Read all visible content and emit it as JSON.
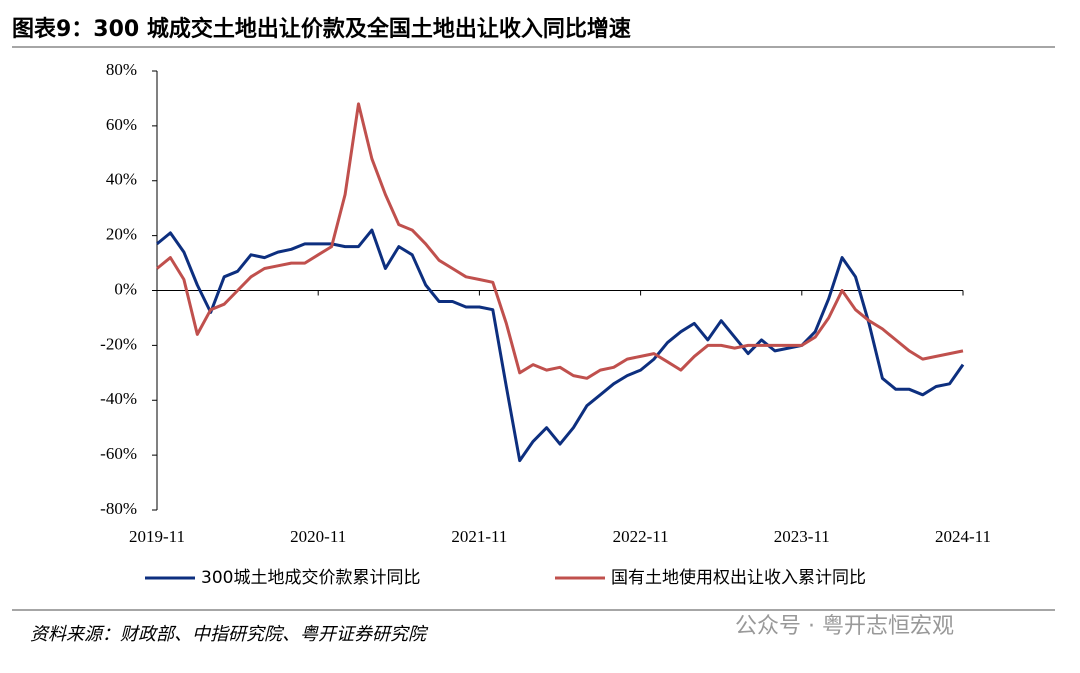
{
  "chart_data": {
    "type": "line",
    "title": "图表9：300 城成交土地出让价款及全国土地出让收入同比增速",
    "source": "资料来源：财政部、中指研究院、粤开证券研究院",
    "watermark": "公众号 · 粤开志恒宏观",
    "categories": [
      "2019-11",
      null,
      null,
      null,
      null,
      null,
      null,
      null,
      null,
      null,
      null,
      null,
      "2020-11",
      null,
      null,
      null,
      null,
      null,
      null,
      null,
      null,
      null,
      null,
      null,
      "2021-11",
      null,
      null,
      null,
      null,
      null,
      null,
      null,
      null,
      null,
      null,
      null,
      "2022-11",
      null,
      null,
      null,
      null,
      null,
      null,
      null,
      null,
      null,
      null,
      null,
      "2023-11",
      null,
      null,
      null,
      null,
      null,
      null,
      null,
      null,
      null,
      null,
      null,
      "2024-11"
    ],
    "series": [
      {
        "name": "300城土地成交价款累计同比",
        "color": "#0d2f7f",
        "values": [
          17,
          21,
          14,
          2,
          -8,
          5,
          7,
          13,
          12,
          14,
          15,
          17,
          17,
          17,
          16,
          16,
          22,
          8,
          16,
          13,
          2,
          -4,
          -4,
          -6,
          -6,
          -7,
          -35,
          -62,
          -55,
          -50,
          -56,
          -50,
          -42,
          -38,
          -34,
          -31,
          -29,
          -25,
          -19,
          -15,
          -12,
          -18,
          -11,
          -17,
          -23,
          -18,
          -22,
          -21,
          -20,
          -15,
          -3,
          12,
          5,
          -12,
          -32,
          -36,
          -36,
          -38,
          -35,
          -34,
          -27
        ]
      },
      {
        "name": "国有土地使用权出让收入累计同比",
        "color": "#c0504d",
        "values": [
          8,
          12,
          4,
          -16,
          -7,
          -5,
          0,
          5,
          8,
          9,
          10,
          10,
          13,
          16,
          35,
          68,
          48,
          35,
          24,
          22,
          17,
          11,
          8,
          5,
          4,
          3,
          -12,
          -30,
          -27,
          -29,
          -28,
          -31,
          -32,
          -29,
          -28,
          -25,
          -24,
          -23,
          -26,
          -29,
          -24,
          -20,
          -20,
          -21,
          -20,
          -20,
          -20,
          -20,
          -20,
          -17,
          -10,
          0,
          -7,
          -11,
          -14,
          -18,
          -22,
          -25,
          -24,
          -23,
          -22
        ]
      }
    ],
    "ylim": [
      -80,
      80
    ],
    "yticks": [
      {
        "value": -80,
        "label": "-80%"
      },
      {
        "value": -60,
        "label": "-60%"
      },
      {
        "value": -40,
        "label": "-40%"
      },
      {
        "value": -20,
        "label": "-20%"
      },
      {
        "value": 0,
        "label": "0%"
      },
      {
        "value": 20,
        "label": "20%"
      },
      {
        "value": 40,
        "label": "40%"
      },
      {
        "value": 60,
        "label": "60%"
      },
      {
        "value": 80,
        "label": "80%"
      }
    ]
  }
}
